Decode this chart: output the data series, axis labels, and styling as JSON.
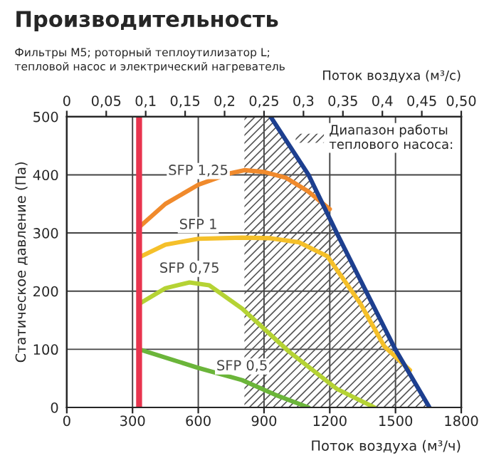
{
  "chart_data": {
    "type": "line",
    "title": "Производительность",
    "subtitle": "Фильтры M5; роторный теплоутилизатор L;\nтепловой насос и электрический нагреватель",
    "xlabel": "Поток воздуха (м³/ч)",
    "x2label": "Поток воздуха (м³/с)",
    "ylabel": "Статическое давление (Па)",
    "series": [
      {
        "name": "SFP 1,25",
        "color": "#f08a2c",
        "x": [
          330,
          450,
          600,
          750,
          810,
          900,
          1000,
          1100,
          1200
        ],
        "values": [
          310,
          350,
          383,
          403,
          408,
          405,
          395,
          372,
          341
        ]
      },
      {
        "name": "SFP 1",
        "color": "#f5c02a",
        "x": [
          330,
          450,
          600,
          800,
          929,
          1060,
          1189,
          1339,
          1449,
          1566
        ],
        "values": [
          258,
          280,
          290,
          292,
          291,
          284,
          260,
          179,
          105,
          64
        ]
      },
      {
        "name": "SFP 0,75",
        "color": "#b5d334",
        "x": [
          330,
          450,
          560,
          650,
          800,
          1014,
          1232,
          1404
        ],
        "values": [
          178,
          205,
          215,
          210,
          170,
          96,
          32,
          0
        ]
      },
      {
        "name": "SFP 0,5",
        "color": "#6bb53a",
        "x": [
          330,
          600,
          800,
          950,
          1103
        ],
        "values": [
          100,
          68,
          47,
          22,
          0
        ]
      },
      {
        "color": "#1d3f8f",
        "x": [
          930,
          1103,
          1232,
          1365,
          1499,
          1655
        ],
        "values": [
          500,
          400,
          300,
          200,
          100,
          0
        ]
      }
    ],
    "ref_lines": [
      {
        "axis": "x",
        "value": 330,
        "color": "#e8344e"
      }
    ],
    "bands": [
      {
        "axis": "x",
        "from": 810,
        "to": 1655,
        "color": "#555555",
        "label": "Диапазон работы\nтеплового насоса:"
      }
    ],
    "xlim": [
      0,
      1800
    ],
    "xticks": [
      0,
      300,
      600,
      900,
      1200,
      1500,
      1800
    ],
    "x2lim": [
      0,
      0.5
    ],
    "x2ticks": [
      0,
      {
        "value": 0.05,
        "label": "0,05"
      },
      {
        "value": 0.1,
        "label": "0,1"
      },
      {
        "value": 0.15,
        "label": "0,15"
      },
      {
        "value": 0.2,
        "label": "0,2"
      },
      {
        "value": 0.25,
        "label": "0,25"
      },
      {
        "value": 0.3,
        "label": "0,3"
      },
      {
        "value": 0.35,
        "label": "0,35"
      },
      {
        "value": 0.4,
        "label": "0,4"
      },
      {
        "value": 0.45,
        "label": "0,45"
      },
      {
        "value": 0.5,
        "label": "0,50"
      }
    ],
    "ylim": [
      0,
      500
    ],
    "yticks": [
      0,
      100,
      200,
      300,
      400,
      500
    ],
    "grid": true,
    "legend": "top right"
  }
}
